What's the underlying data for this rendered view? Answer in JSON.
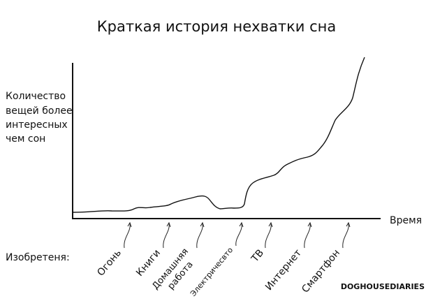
{
  "title": "Краткая история нехватки сна",
  "y_label": [
    "Количество",
    "вещей более",
    "интересных",
    "чем сон"
  ],
  "x_label": "Время",
  "inventions_label": "Изобретеня:",
  "inventions": [
    {
      "lines": [
        "Огонь"
      ]
    },
    {
      "lines": [
        "Книги"
      ]
    },
    {
      "lines": [
        "Домашняя",
        "работа"
      ]
    },
    {
      "lines": [
        "Электричесвто"
      ]
    },
    {
      "lines": [
        "ТВ"
      ]
    },
    {
      "lines": [
        "Интернет"
      ]
    },
    {
      "lines": [
        "Смартфон"
      ]
    }
  ],
  "credit": "DOGHOUSEDIARIES"
}
